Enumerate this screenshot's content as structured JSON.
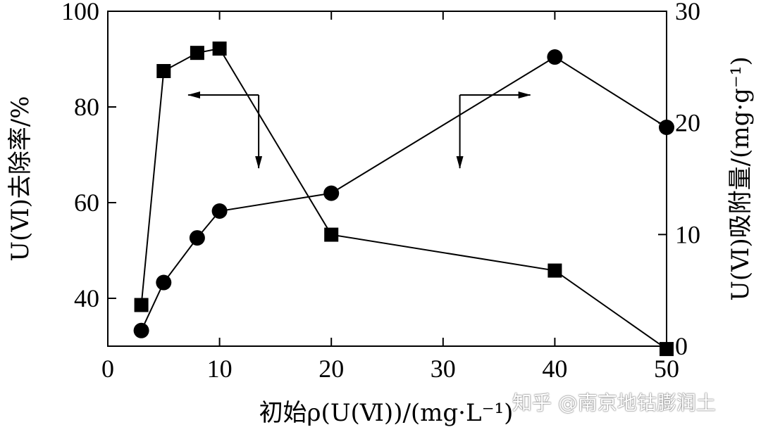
{
  "chart_data": {
    "type": "line",
    "title": "",
    "xlabel": "初始ρ(U(Ⅵ))/(mg·L⁻¹)",
    "ylabel_left": "U(Ⅵ)去除率/%",
    "ylabel_right": "U(Ⅵ)吸附量/(mg·g⁻¹)",
    "xlim": [
      0,
      50
    ],
    "ylim_left": [
      30,
      100
    ],
    "ylim_right": [
      0,
      30
    ],
    "x_ticks": [
      0,
      10,
      20,
      30,
      40,
      50
    ],
    "y_left_ticks": [
      40,
      60,
      80,
      100
    ],
    "y_right_ticks": [
      0,
      10,
      20,
      30
    ],
    "grid": false,
    "series": [
      {
        "marker": "square",
        "axis": "left",
        "x": [
          3,
          5,
          8,
          10,
          20,
          40,
          50
        ],
        "y": [
          38.6,
          87.5,
          91.3,
          92.2,
          53.3,
          45.8,
          29.4
        ]
      },
      {
        "marker": "circle",
        "axis": "right",
        "x": [
          3,
          5,
          8,
          10,
          20,
          40,
          50
        ],
        "y": [
          1.4,
          5.7,
          9.7,
          12.1,
          13.7,
          25.9,
          19.6
        ]
      }
    ],
    "annotations": [
      {
        "type": "arrow-indicator",
        "points_to_axis": "left",
        "anchor_x": 13.5,
        "anchor_y_left": 82.5
      },
      {
        "type": "arrow-indicator",
        "points_to_axis": "right",
        "anchor_x": 31.5,
        "anchor_y_left": 82.5
      }
    ]
  },
  "watermark": "知乎 @南京地钴膨润土"
}
